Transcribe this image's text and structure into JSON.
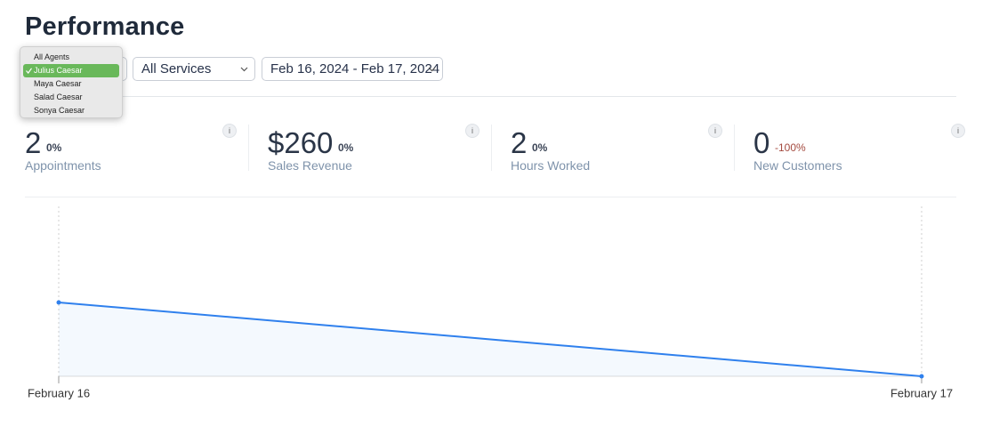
{
  "header": {
    "title": "Performance"
  },
  "filters": {
    "agent_options": [
      {
        "label": "All Agents"
      },
      {
        "label": "Julius Caesar",
        "selected": true
      },
      {
        "label": "Maya Caesar"
      },
      {
        "label": "Salad Caesar"
      },
      {
        "label": "Sonya Caesar"
      }
    ],
    "service": "All Services",
    "date_range": "Feb 16, 2024 - Feb 17, 2024"
  },
  "metrics": [
    {
      "value": "2",
      "change": "0%",
      "label": "Appointments",
      "info": "i"
    },
    {
      "value": "$260",
      "change": "0%",
      "label": "Sales Revenue",
      "info": "i"
    },
    {
      "value": "2",
      "change": "0%",
      "label": "Hours Worked",
      "info": "i"
    },
    {
      "value": "0",
      "change": "-100%",
      "label": "New Customers",
      "info": "i"
    }
  ],
  "chart_data": {
    "type": "line",
    "categories": [
      "February 16",
      "February 17"
    ],
    "series": [
      {
        "color": "#2f80ed",
        "values": [
          2,
          0
        ]
      }
    ],
    "ylim": [
      0,
      4.6
    ]
  }
}
